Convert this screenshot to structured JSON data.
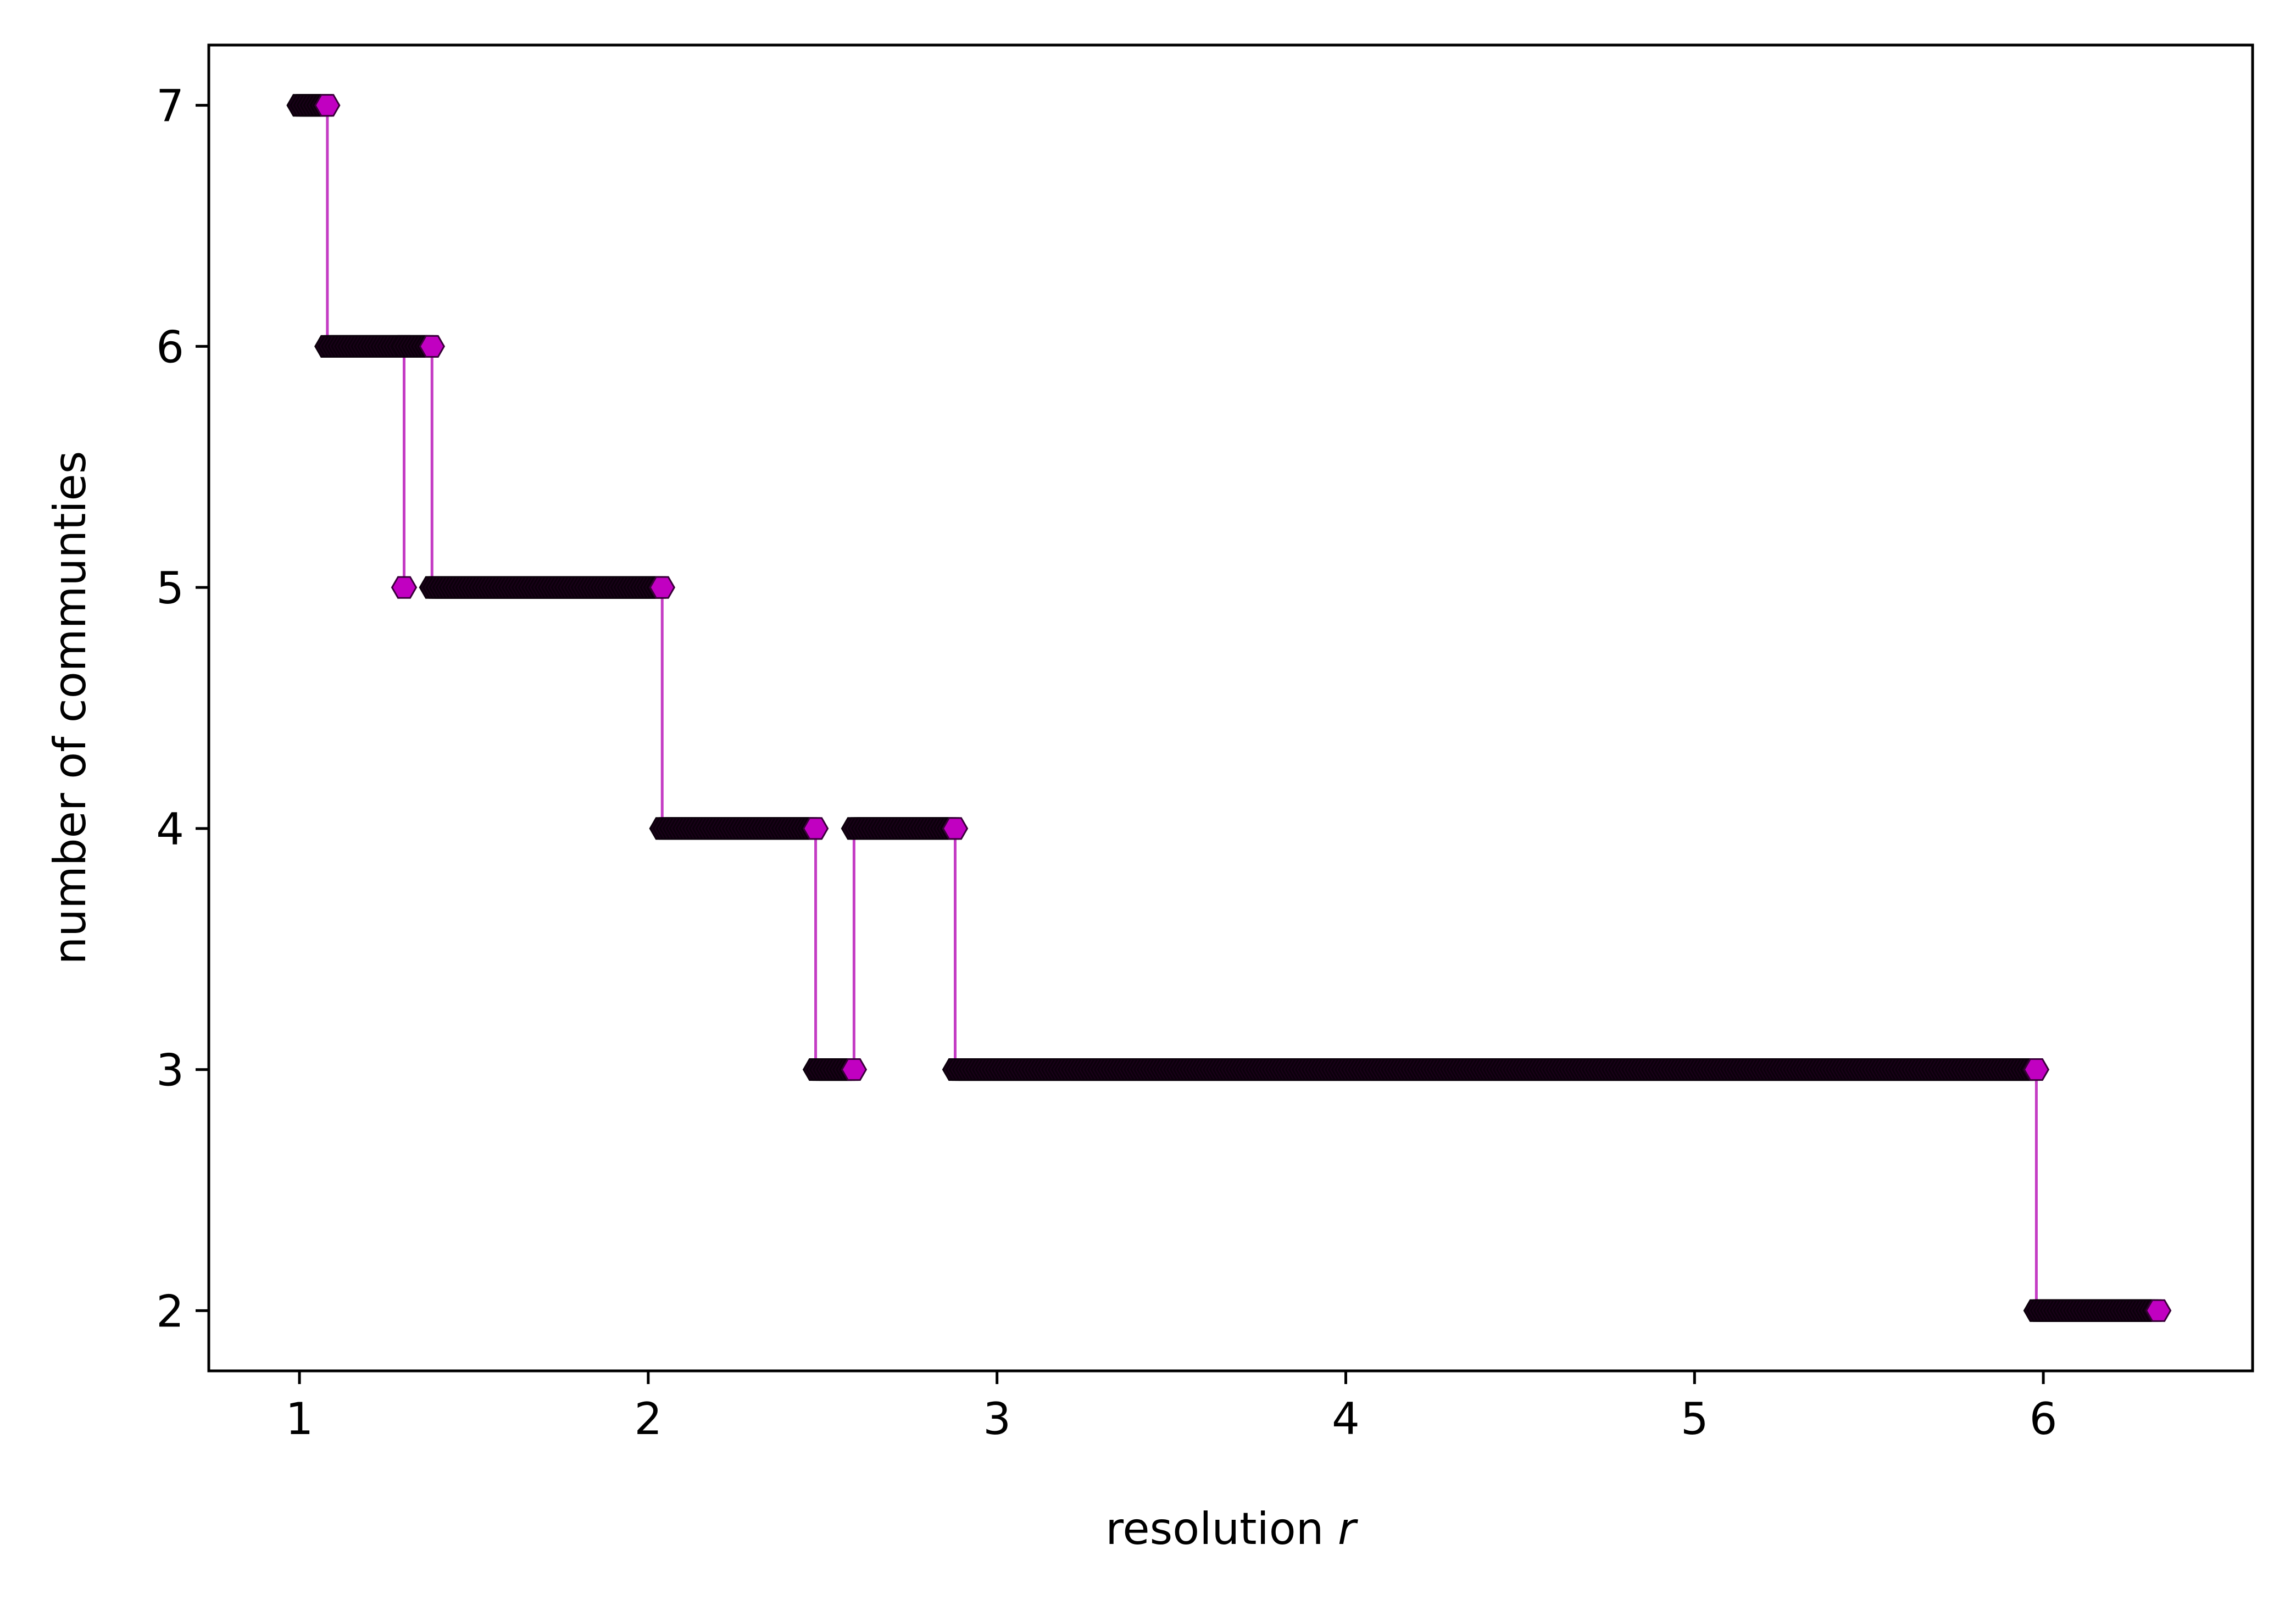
{
  "chart_data": {
    "type": "line",
    "xlabel": "resolution",
    "xlabel_symbol": "r",
    "ylabel": "number of communties",
    "xlim": [
      0.74,
      6.6
    ],
    "ylim": [
      1.75,
      7.25
    ],
    "xticks": [
      1,
      2,
      3,
      4,
      5,
      6
    ],
    "yticks": [
      2,
      3,
      4,
      5,
      6,
      7
    ],
    "grid": false,
    "legend": "none",
    "series": [
      {
        "line_color": "#c43cc4",
        "marker_fill_dense": "#1a0019",
        "marker_fill_end": "#c100c1",
        "marker": "hexagon",
        "segments": [
          {
            "x": [
              1.0,
              1.08
            ],
            "y": 7
          },
          {
            "x": [
              1.08,
              1.3
            ],
            "y": 6
          },
          {
            "x": [
              1.3,
              1.3
            ],
            "y": 5
          },
          {
            "x": [
              1.3,
              1.38
            ],
            "y": 6
          },
          {
            "x": [
              1.38,
              2.04
            ],
            "y": 5
          },
          {
            "x": [
              2.04,
              2.48
            ],
            "y": 4
          },
          {
            "x": [
              2.48,
              2.59
            ],
            "y": 3
          },
          {
            "x": [
              2.59,
              2.88
            ],
            "y": 4
          },
          {
            "x": [
              2.88,
              5.98
            ],
            "y": 3
          },
          {
            "x": [
              5.98,
              6.33
            ],
            "y": 2
          }
        ]
      }
    ]
  }
}
